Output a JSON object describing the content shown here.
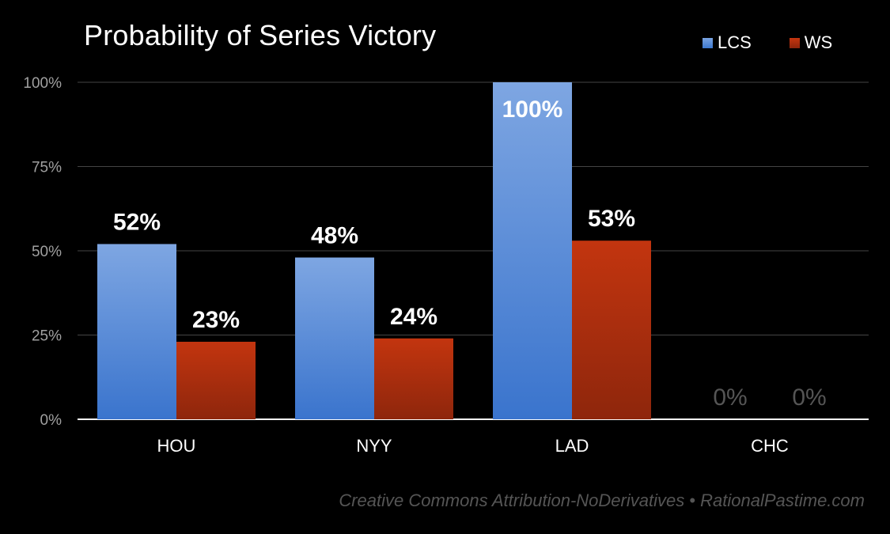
{
  "chart_data": {
    "type": "bar",
    "title": "Probability of Series Victory",
    "categories": [
      "HOU",
      "NYY",
      "LAD",
      "CHC"
    ],
    "series": [
      {
        "name": "LCS",
        "values": [
          52,
          48,
          100,
          0
        ],
        "labels": [
          "52%",
          "48%",
          "100%",
          "0%"
        ],
        "color": "#5b8fdb"
      },
      {
        "name": "WS",
        "values": [
          23,
          24,
          53,
          0
        ],
        "labels": [
          "23%",
          "24%",
          "53%",
          "0%"
        ],
        "color": "#b5300e"
      }
    ],
    "yticks": [
      "0%",
      "25%",
      "50%",
      "75%",
      "100%"
    ],
    "ytick_values": [
      0,
      25,
      50,
      75,
      100
    ],
    "ylim": [
      0,
      100
    ],
    "xlabel": "",
    "ylabel": "",
    "grid": true,
    "legend_position": "top-right"
  },
  "footer": {
    "credit": "Creative Commons Attribution-NoDerivatives • RationalPastime.com"
  },
  "colors": {
    "background": "#000000",
    "lcs": "#5b8fdb",
    "ws": "#b5300e",
    "gridline": "#444444",
    "zero_label": "#555555"
  }
}
